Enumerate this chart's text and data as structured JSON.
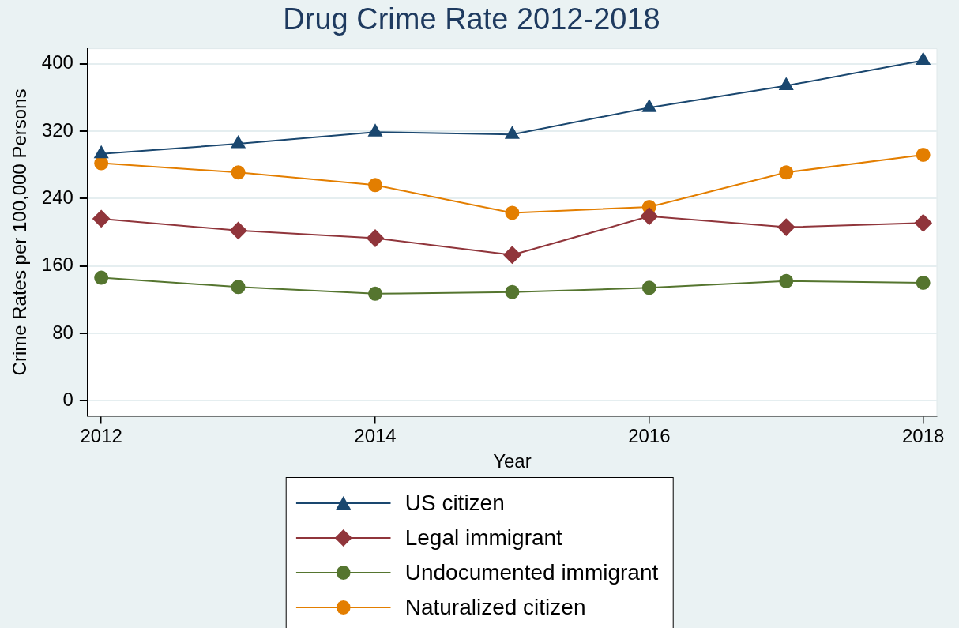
{
  "chart_data": {
    "type": "line",
    "title": "Drug Crime Rate 2012-2018",
    "xlabel": "Year",
    "ylabel": "Crime Rates per 100,000 Persons",
    "x": [
      2012,
      2013,
      2014,
      2015,
      2016,
      2017,
      2018
    ],
    "series": [
      {
        "name": "US citizen",
        "color": "#1a476f",
        "marker": "triangle",
        "values": [
          293,
          305,
          319,
          316,
          348,
          374,
          404
        ]
      },
      {
        "name": "Legal immigrant",
        "color": "#90353b",
        "marker": "diamond",
        "values": [
          216,
          202,
          193,
          173,
          219,
          206,
          211
        ]
      },
      {
        "name": "Undocumented immigrant",
        "color": "#55752f",
        "marker": "circle",
        "values": [
          146,
          135,
          127,
          129,
          134,
          142,
          140
        ]
      },
      {
        "name": "Naturalized citizen",
        "color": "#e37e00",
        "marker": "circle",
        "values": [
          282,
          271,
          256,
          223,
          230,
          271,
          292
        ]
      }
    ],
    "xlim": [
      2011.9,
      2018.1
    ],
    "xticks": [
      2012,
      2014,
      2016,
      2018
    ],
    "ylim": [
      -18,
      418
    ],
    "yticks": [
      0,
      80,
      160,
      240,
      320,
      400
    ],
    "grid": "y",
    "legend": "bottom",
    "line_style": "solid"
  }
}
